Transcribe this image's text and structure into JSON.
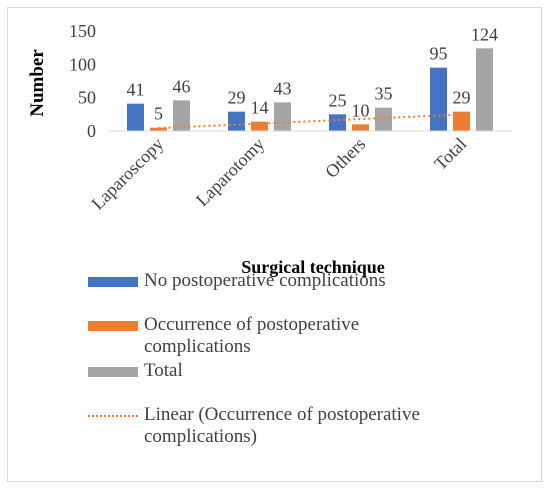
{
  "chart_data": {
    "type": "bar",
    "ylabel": "Number",
    "xlabel": "Surgical technique",
    "categories": [
      "Laparoscopy",
      "Laparotomy",
      "Others",
      "Total"
    ],
    "series": [
      {
        "name": "No postoperative complications",
        "values": [
          41,
          29,
          25,
          95
        ],
        "color": "#4472C4"
      },
      {
        "name": "Occurrence of postoperative complications",
        "values": [
          5,
          14,
          10,
          29
        ],
        "color": "#ED7D31"
      },
      {
        "name": "Total",
        "values": [
          46,
          43,
          35,
          124
        ],
        "color": "#A5A5A5"
      }
    ],
    "trendline": {
      "name": "Linear (Occurrence of postoperative complications)",
      "style": "dotted",
      "color": "#ED7D31"
    },
    "ylim": [
      0,
      150
    ],
    "yticks": [
      0,
      50,
      100,
      150
    ],
    "grid": false,
    "legend_position": "bottom"
  }
}
